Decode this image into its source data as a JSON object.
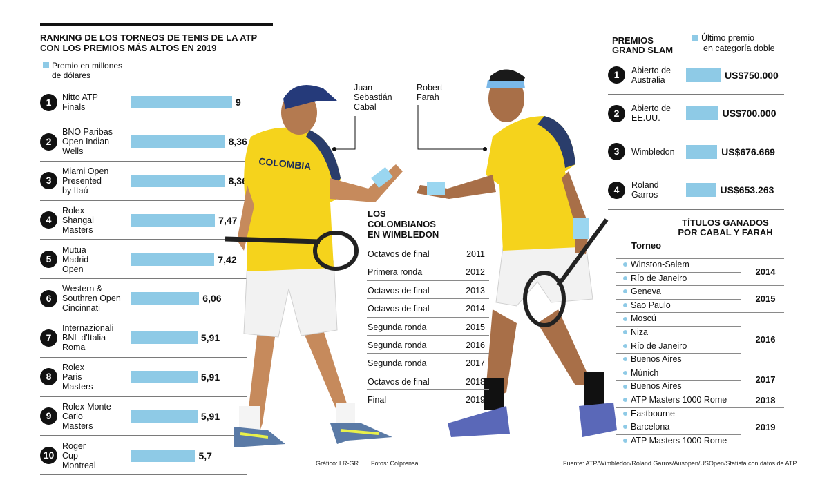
{
  "ranking": {
    "title_line1": "RANKING DE LOS TORNEOS DE TENIS DE LA ATP",
    "title_line2": "CON LOS PREMIOS MÁS ALTOS EN 2019",
    "legend_line1": "Premio en millones",
    "legend_line2": "de dólares",
    "items": [
      {
        "rank": "1",
        "name": [
          "Nitto ATP",
          "Finals"
        ],
        "value_label": "9"
      },
      {
        "rank": "2",
        "name": [
          "BNO Paribas",
          "Open Indian",
          "Wells"
        ],
        "value_label": "8,36"
      },
      {
        "rank": "3",
        "name": [
          "Miami Open",
          "Presented",
          "by Itaú"
        ],
        "value_label": "8,36"
      },
      {
        "rank": "4",
        "name": [
          "Rolex",
          "Shangai",
          "Masters"
        ],
        "value_label": "7,47"
      },
      {
        "rank": "5",
        "name": [
          "Mutua",
          "Madrid",
          "Open"
        ],
        "value_label": "7,42"
      },
      {
        "rank": "6",
        "name": [
          "Western &",
          "Southren Open",
          "Cincinnati"
        ],
        "value_label": "6,06"
      },
      {
        "rank": "7",
        "name": [
          "Internazionali",
          "BNL d'Italia",
          "Roma"
        ],
        "value_label": "5,91"
      },
      {
        "rank": "8",
        "name": [
          "Rolex",
          "Paris",
          "Masters"
        ],
        "value_label": "5,91"
      },
      {
        "rank": "9",
        "name": [
          "Rolex-Monte",
          "Carlo",
          "Masters"
        ],
        "value_label": "5,91"
      },
      {
        "rank": "10",
        "name": [
          "Roger",
          "Cup",
          "Montreal"
        ],
        "value_label": "5,7"
      }
    ]
  },
  "players": {
    "player1": [
      "Juan",
      "Sebastián",
      "Cabal"
    ],
    "player2": [
      "Robert",
      "Farah"
    ],
    "shirt_text": "COLOMBIA"
  },
  "wimbledon": {
    "title": [
      "LOS",
      "COLOMBIANOS",
      "EN WIMBLEDON"
    ],
    "rows": [
      {
        "result": "Octavos de final",
        "year": "2011"
      },
      {
        "result": "Primera ronda",
        "year": "2012"
      },
      {
        "result": "Octavos de final",
        "year": "2013"
      },
      {
        "result": "Octavos de final",
        "year": "2014"
      },
      {
        "result": "Segunda ronda",
        "year": "2015"
      },
      {
        "result": "Segunda ronda",
        "year": "2016"
      },
      {
        "result": "Segunda ronda",
        "year": "2017"
      },
      {
        "result": "Octavos de final",
        "year": "2018"
      },
      {
        "result": "Final",
        "year": "2019"
      }
    ]
  },
  "grand_slam": {
    "title": [
      "PREMIOS",
      "GRAND SLAM"
    ],
    "legend_line1": "Último premio",
    "legend_line2": "en categoría doble",
    "items": [
      {
        "rank": "1",
        "name": [
          "Abierto de",
          "Australia"
        ],
        "value_label": "US$750.000"
      },
      {
        "rank": "2",
        "name": [
          "Abierto de",
          "EE.UU."
        ],
        "value_label": "US$700.000"
      },
      {
        "rank": "3",
        "name": [
          "Wimbledon"
        ],
        "value_label": "US$676.669"
      },
      {
        "rank": "4",
        "name": [
          "Roland",
          "Garros"
        ],
        "value_label": "US$653.263"
      }
    ]
  },
  "titles": {
    "title": [
      "TÍTULOS GANADOS",
      "POR CABAL Y FARAH"
    ],
    "column_header": "Torneo",
    "tournaments": [
      "Winston-Salem",
      "Río de Janeiro",
      "Geneva",
      "Sao Paulo",
      "Moscú",
      "Niza",
      "Río de Janeiro",
      "Buenos Aires",
      "Múnich",
      "Buenos Aires",
      "ATP Masters 1000 Rome",
      "Eastbourne",
      "Barcelona",
      "ATP Masters 1000 Rome"
    ],
    "year_groups": [
      {
        "year": "2014",
        "count": 2
      },
      {
        "year": "2015",
        "count": 2
      },
      {
        "year": "2016",
        "count": 4
      },
      {
        "year": "2017",
        "count": 2
      },
      {
        "year": "2018",
        "count": 1
      },
      {
        "year": "2019",
        "count": 3
      }
    ]
  },
  "footer": {
    "grafico": "Gráfico: LR-GR",
    "fotos": "Fotos: Colprensa",
    "fuente": "Fuente: ATP/Wimbledon/Roland Garros/Ausopen/USOpen/Statista con datos de ATP"
  },
  "colors": {
    "bar": "#8ecae6",
    "badge": "#111111",
    "shirt": "#f5d31c"
  },
  "chart_data": [
    {
      "type": "bar",
      "title": "RANKING DE LOS TORNEOS DE TENIS DE LA ATP CON LOS PREMIOS MÁS ALTOS EN 2019",
      "ylabel": "Premio en millones de dólares",
      "orientation": "horizontal",
      "categories": [
        "Nitto ATP Finals",
        "BNO Paribas Open Indian Wells",
        "Miami Open Presented by Itaú",
        "Rolex Shangai Masters",
        "Mutua Madrid Open",
        "Western & Southren Open Cincinnati",
        "Internazionali BNL d'Italia Roma",
        "Rolex Paris Masters",
        "Rolex-Monte Carlo Masters",
        "Roger Cup Montreal"
      ],
      "values": [
        9,
        8.36,
        8.36,
        7.47,
        7.42,
        6.06,
        5.91,
        5.91,
        5.91,
        5.7
      ]
    },
    {
      "type": "bar",
      "title": "PREMIOS GRAND SLAM",
      "ylabel": "Último premio en categoría doble (US$)",
      "orientation": "horizontal",
      "categories": [
        "Abierto de Australia",
        "Abierto de EE.UU.",
        "Wimbledon",
        "Roland Garros"
      ],
      "values": [
        750000,
        700000,
        676669,
        653263
      ]
    }
  ]
}
